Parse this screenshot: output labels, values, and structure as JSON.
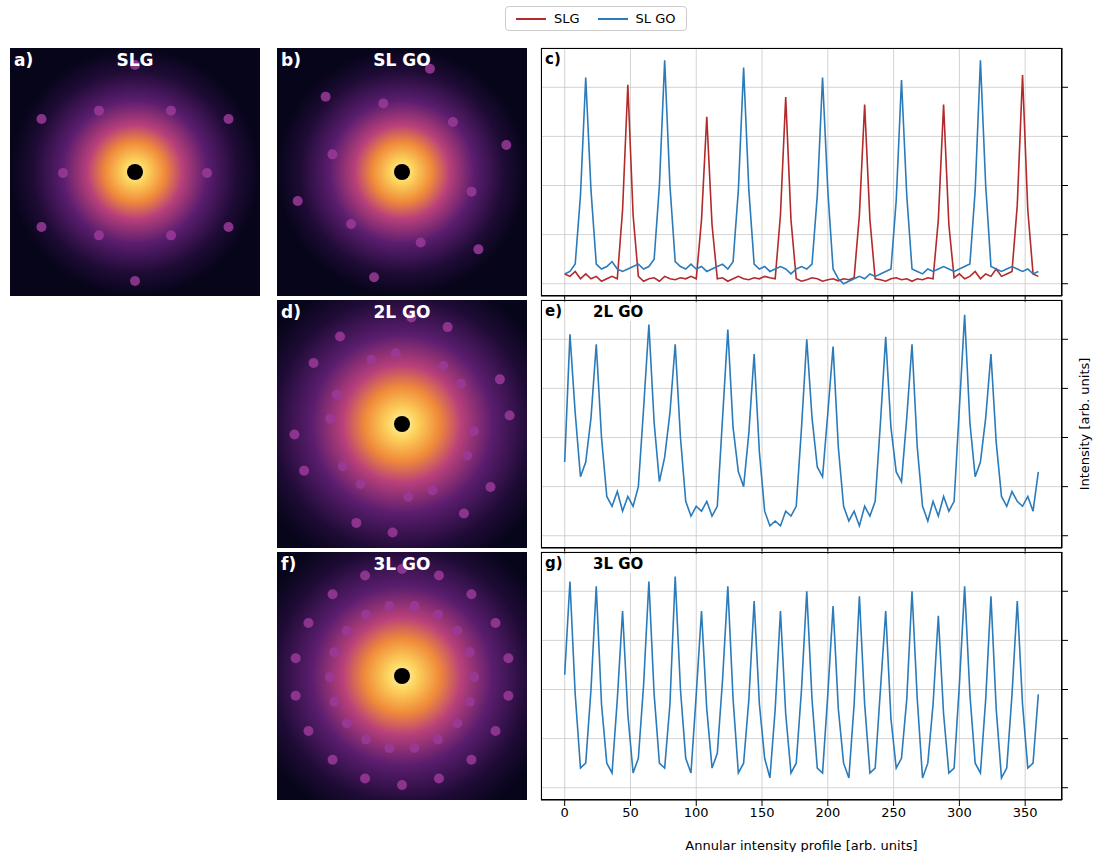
{
  "images": [
    {
      "panel": "a)",
      "title": "SLG"
    },
    {
      "panel": "b)",
      "title": "SL GO"
    },
    {
      "panel": "d)",
      "title": "2L GO"
    },
    {
      "panel": "f)",
      "title": "3L GO"
    }
  ],
  "chart_data": [
    {
      "type": "line",
      "panel": "c)",
      "legend": "top",
      "grid": true,
      "tick_labels": false,
      "xlim": [
        -18,
        378
      ],
      "xticks": [
        0,
        50,
        100,
        150,
        200,
        250,
        300,
        350
      ],
      "ylim": [
        -0.25,
        4.8
      ],
      "yticks": [
        0,
        1,
        2,
        3,
        4
      ],
      "x": [
        0,
        4,
        8,
        12,
        16,
        20,
        24,
        28,
        32,
        36,
        40,
        44,
        48,
        52,
        56,
        60,
        64,
        68,
        72,
        76,
        80,
        84,
        88,
        92,
        96,
        100,
        104,
        108,
        112,
        116,
        120,
        124,
        128,
        132,
        136,
        140,
        144,
        148,
        152,
        156,
        160,
        164,
        168,
        172,
        176,
        180,
        184,
        188,
        192,
        196,
        200,
        204,
        208,
        212,
        216,
        220,
        224,
        228,
        232,
        236,
        240,
        244,
        248,
        252,
        256,
        260,
        264,
        268,
        272,
        276,
        280,
        284,
        288,
        292,
        296,
        300,
        304,
        308,
        312,
        316,
        320,
        324,
        328,
        332,
        336,
        340,
        344,
        348,
        352,
        356,
        360
      ],
      "series": [
        {
          "name": "SLG",
          "color": "#b22a2a",
          "values": [
            0.2,
            0.15,
            0.25,
            0.1,
            0.2,
            0.1,
            0.15,
            0.05,
            0.1,
            0.15,
            0.1,
            1.5,
            4.05,
            1.4,
            0.15,
            0.05,
            0.1,
            0.12,
            0.05,
            0.15,
            0.1,
            0.08,
            0.12,
            0.1,
            0.15,
            0.1,
            1.3,
            3.4,
            1.2,
            0.1,
            0.12,
            0.05,
            0.1,
            0.15,
            0.1,
            0.08,
            0.12,
            0.1,
            0.15,
            0.12,
            0.1,
            1.4,
            3.8,
            1.3,
            0.1,
            0.05,
            0.08,
            0.12,
            0.1,
            0.05,
            0.08,
            0.1,
            0.06,
            0.1,
            0.08,
            0.12,
            1.4,
            3.65,
            1.3,
            0.1,
            0.08,
            0.05,
            0.1,
            0.12,
            0.08,
            0.1,
            0.05,
            0.1,
            0.08,
            0.12,
            0.1,
            1.3,
            3.65,
            1.2,
            0.12,
            0.2,
            0.1,
            0.15,
            0.25,
            0.1,
            0.2,
            0.15,
            0.3,
            0.15,
            0.2,
            0.25,
            1.6,
            4.25,
            1.5,
            0.2,
            0.15
          ]
        },
        {
          "name": "SL GO",
          "color": "#2b7bba",
          "values": [
            0.2,
            0.25,
            0.4,
            1.8,
            4.2,
            1.9,
            0.4,
            0.3,
            0.35,
            0.45,
            0.3,
            0.25,
            0.3,
            0.35,
            0.4,
            0.3,
            0.35,
            0.5,
            2.0,
            4.55,
            2.0,
            0.45,
            0.35,
            0.3,
            0.4,
            0.3,
            0.35,
            0.25,
            0.3,
            0.35,
            0.4,
            0.3,
            0.45,
            1.9,
            4.4,
            1.9,
            0.4,
            0.3,
            0.35,
            0.25,
            0.3,
            0.35,
            0.3,
            0.2,
            0.3,
            0.35,
            0.3,
            0.4,
            1.8,
            4.2,
            1.9,
            0.3,
            0.1,
            0.0,
            0.05,
            0.1,
            0.15,
            0.1,
            0.2,
            0.15,
            0.2,
            0.25,
            0.3,
            1.7,
            4.15,
            1.8,
            0.3,
            0.25,
            0.2,
            0.3,
            0.25,
            0.3,
            0.35,
            0.3,
            0.25,
            0.3,
            0.35,
            0.4,
            1.9,
            4.55,
            2.0,
            0.35,
            0.3,
            0.25,
            0.3,
            0.35,
            0.3,
            0.25,
            0.3,
            0.2,
            0.25
          ]
        }
      ]
    },
    {
      "type": "line",
      "panel": "e)",
      "title": "2L GO",
      "grid": true,
      "tick_labels": false,
      "xlim": [
        -18,
        378
      ],
      "xticks": [
        0,
        50,
        100,
        150,
        200,
        250,
        300,
        350
      ],
      "ylim": [
        -0.25,
        4.8
      ],
      "yticks": [
        0,
        1,
        2,
        3,
        4
      ],
      "x": [
        0,
        4,
        8,
        12,
        16,
        20,
        24,
        28,
        32,
        36,
        40,
        44,
        48,
        52,
        56,
        60,
        64,
        68,
        72,
        76,
        80,
        84,
        88,
        92,
        96,
        100,
        104,
        108,
        112,
        116,
        120,
        124,
        128,
        132,
        136,
        140,
        144,
        148,
        152,
        156,
        160,
        164,
        168,
        172,
        176,
        180,
        184,
        188,
        192,
        196,
        200,
        204,
        208,
        212,
        216,
        220,
        224,
        228,
        232,
        236,
        240,
        244,
        248,
        252,
        256,
        260,
        264,
        268,
        272,
        276,
        280,
        284,
        288,
        292,
        296,
        300,
        304,
        308,
        312,
        316,
        320,
        324,
        328,
        332,
        336,
        340,
        344,
        348,
        352,
        356,
        360
      ],
      "series": [
        {
          "color": "#2b7bba",
          "values": [
            1.5,
            4.1,
            2.5,
            1.2,
            1.5,
            2.4,
            3.9,
            2.0,
            0.8,
            0.6,
            0.9,
            0.5,
            0.8,
            0.6,
            1.0,
            2.6,
            4.3,
            2.3,
            1.1,
            1.6,
            2.5,
            3.9,
            2.0,
            0.7,
            0.4,
            0.6,
            0.5,
            0.7,
            0.4,
            0.6,
            2.4,
            4.2,
            2.2,
            1.3,
            1.0,
            2.1,
            3.7,
            1.7,
            0.5,
            0.2,
            0.3,
            0.2,
            0.5,
            0.4,
            0.6,
            2.2,
            4.0,
            2.4,
            1.4,
            1.2,
            2.5,
            3.85,
            1.8,
            0.6,
            0.3,
            0.5,
            0.2,
            0.6,
            0.4,
            0.7,
            2.3,
            4.05,
            2.2,
            1.3,
            1.1,
            2.4,
            3.9,
            1.8,
            0.6,
            0.3,
            0.7,
            0.4,
            0.8,
            0.5,
            0.7,
            2.6,
            4.5,
            2.3,
            1.2,
            1.5,
            2.4,
            3.7,
            1.9,
            0.8,
            0.6,
            0.9,
            0.7,
            0.6,
            0.8,
            0.5,
            1.3
          ]
        }
      ]
    },
    {
      "type": "line",
      "panel": "g)",
      "title": "3L GO",
      "xlabel": "Annular intensity profile [arb. units]",
      "ylabel": "Intensity [arb. units]",
      "grid": true,
      "tick_labels": "x",
      "xlim": [
        -18,
        378
      ],
      "xticks": [
        0,
        50,
        100,
        150,
        200,
        250,
        300,
        350
      ],
      "ylim": [
        -0.25,
        4.8
      ],
      "yticks": [
        0,
        1,
        2,
        3,
        4
      ],
      "x": [
        0,
        4,
        8,
        12,
        16,
        20,
        24,
        28,
        32,
        36,
        40,
        44,
        48,
        52,
        56,
        60,
        64,
        68,
        72,
        76,
        80,
        84,
        88,
        92,
        96,
        100,
        104,
        108,
        112,
        116,
        120,
        124,
        128,
        132,
        136,
        140,
        144,
        148,
        152,
        156,
        160,
        164,
        168,
        172,
        176,
        180,
        184,
        188,
        192,
        196,
        200,
        204,
        208,
        212,
        216,
        220,
        224,
        228,
        232,
        236,
        240,
        244,
        248,
        252,
        256,
        260,
        264,
        268,
        272,
        276,
        280,
        284,
        288,
        292,
        296,
        300,
        304,
        308,
        312,
        316,
        320,
        324,
        328,
        332,
        336,
        340,
        344,
        348,
        352,
        356,
        360
      ],
      "series": [
        {
          "color": "#2b7bba",
          "values": [
            2.3,
            4.2,
            1.9,
            0.4,
            0.5,
            2.0,
            4.1,
            1.7,
            0.5,
            0.3,
            1.8,
            3.6,
            1.5,
            0.3,
            0.6,
            2.1,
            4.2,
            1.9,
            0.5,
            0.4,
            1.7,
            4.3,
            2.0,
            0.6,
            0.3,
            1.9,
            3.6,
            1.6,
            0.4,
            0.7,
            2.2,
            4.1,
            1.8,
            0.3,
            0.5,
            1.8,
            3.8,
            1.7,
            0.6,
            0.2,
            1.6,
            3.6,
            1.5,
            0.3,
            0.5,
            2.0,
            4.0,
            1.8,
            0.4,
            0.3,
            1.9,
            3.7,
            1.6,
            0.5,
            0.2,
            1.7,
            3.9,
            1.7,
            0.3,
            0.4,
            2.0,
            3.6,
            1.4,
            0.4,
            0.6,
            1.8,
            4.0,
            1.8,
            0.2,
            0.5,
            1.7,
            3.5,
            1.5,
            0.3,
            0.4,
            2.1,
            4.1,
            1.9,
            0.5,
            0.3,
            1.8,
            3.9,
            1.6,
            0.2,
            0.4,
            1.9,
            3.8,
            1.7,
            0.4,
            0.5,
            1.9
          ]
        }
      ]
    }
  ]
}
